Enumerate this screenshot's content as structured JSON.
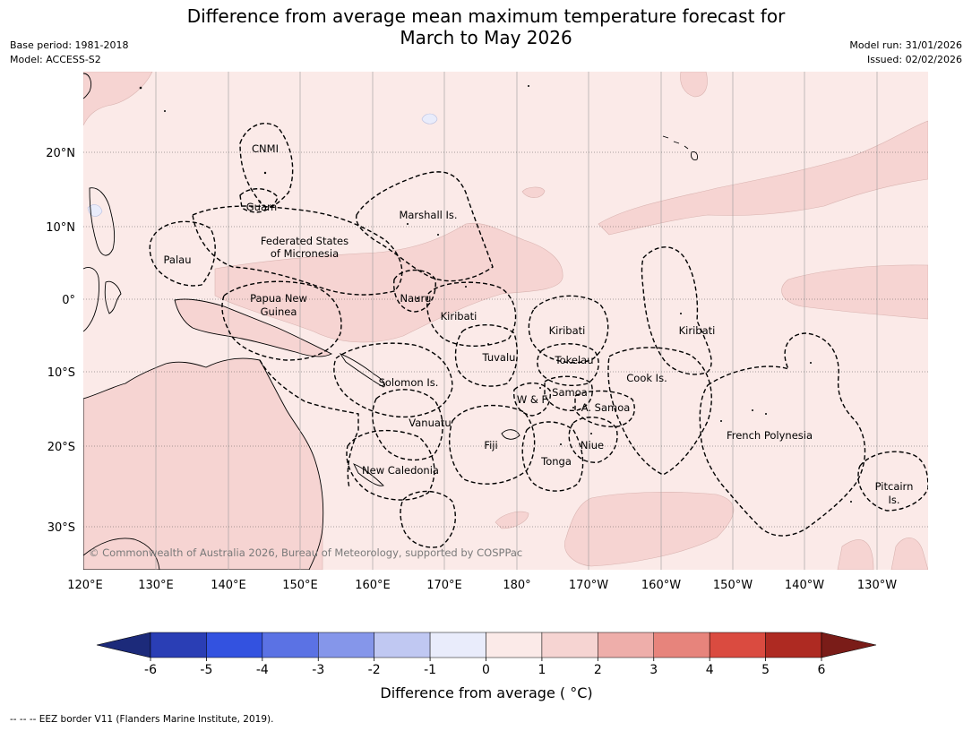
{
  "title_line1": "Difference from average mean maximum temperature forecast for",
  "title_line2": "March to May 2026",
  "meta_left": [
    "Base period: 1981-2018",
    "Model: ACCESS-S2"
  ],
  "meta_right": [
    "Model run: 31/01/2026",
    "Issued: 02/02/2026"
  ],
  "credit": "© Commonwealth of Australia 2026, Bureau of Meteorology, supported by COSPPac",
  "footer": "-- -- -- EEZ border V11 (Flanders Marine Institute, 2019).",
  "axes": {
    "lon_ticks": [
      "120°E",
      "130°E",
      "140°E",
      "150°E",
      "160°E",
      "170°E",
      "180°",
      "170°W",
      "160°W",
      "150°W",
      "140°W",
      "130°W"
    ],
    "lat_ticks": [
      "20°N",
      "10°N",
      "0°",
      "10°S",
      "20°S",
      "30°S"
    ]
  },
  "regions": [
    {
      "name": "cnmi",
      "label": "CNMI"
    },
    {
      "name": "guam",
      "label": "Guam"
    },
    {
      "name": "marshall-islands",
      "label": "Marshall Is."
    },
    {
      "name": "fsm-1",
      "label": "Federated States"
    },
    {
      "name": "fsm-2",
      "label": "of Micronesia"
    },
    {
      "name": "palau",
      "label": "Palau"
    },
    {
      "name": "png-1",
      "label": "Papua New"
    },
    {
      "name": "png-2",
      "label": "Guinea"
    },
    {
      "name": "nauru",
      "label": "Nauru"
    },
    {
      "name": "kiribati-west",
      "label": "Kiribati"
    },
    {
      "name": "kiribati-central",
      "label": "Kiribati"
    },
    {
      "name": "kiribati-east",
      "label": "Kiribati"
    },
    {
      "name": "tuvalu",
      "label": "Tuvalu"
    },
    {
      "name": "tokelau",
      "label": "Tokelau"
    },
    {
      "name": "cook-islands",
      "label": "Cook Is."
    },
    {
      "name": "solomon-islands",
      "label": "Solomon Is."
    },
    {
      "name": "wallis-futuna",
      "label": "W & F"
    },
    {
      "name": "samoa",
      "label": "Samoa"
    },
    {
      "name": "american-samoa",
      "label": "A. Samoa"
    },
    {
      "name": "vanuatu",
      "label": "Vanuatu"
    },
    {
      "name": "fiji",
      "label": "Fiji"
    },
    {
      "name": "niue",
      "label": "Niue"
    },
    {
      "name": "french-polynesia",
      "label": "French Polynesia"
    },
    {
      "name": "tonga",
      "label": "Tonga"
    },
    {
      "name": "new-caledonia",
      "label": "New Caledonia"
    },
    {
      "name": "pitcairn-1",
      "label": "Pitcairn"
    },
    {
      "name": "pitcairn-2",
      "label": "Is."
    }
  ],
  "colorbar": {
    "title": "Difference from average ( °C)",
    "ticks": [
      "-6",
      "-5",
      "-4",
      "-3",
      "-2",
      "-1",
      "0",
      "1",
      "2",
      "3",
      "4",
      "5",
      "6"
    ],
    "colors": [
      "#1c2a7a",
      "#2a3eb5",
      "#3352e0",
      "#5b72e4",
      "#8596ea",
      "#c0c8f2",
      "#e9ecfb",
      "#fbeae8",
      "#f6d4d2",
      "#eeaeaa",
      "#e7847c",
      "#da4b40",
      "#ae2a22",
      "#7a1c18"
    ]
  },
  "anomaly_colors": {
    "background": "#fbeae8",
    "warm_1_2": "#f6d4d2",
    "cool_0_neg1": "#e9ecfb"
  }
}
